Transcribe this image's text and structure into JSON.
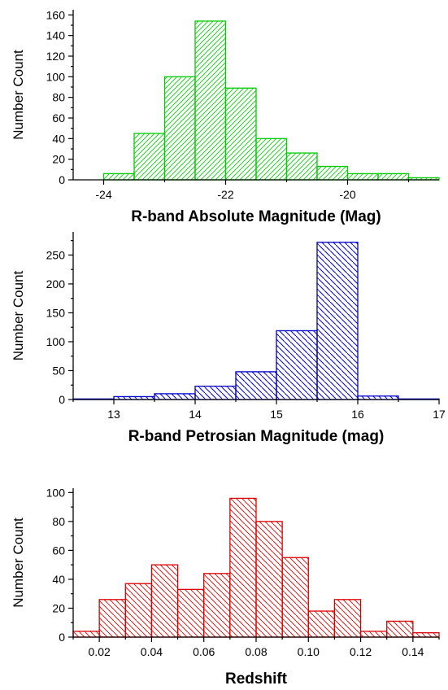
{
  "chart_data": [
    {
      "type": "bar",
      "name": "absolute-magnitude",
      "color": "#00cc00",
      "hatch": "forward",
      "xlabel": "R-band Absolute Magnitude (Mag)",
      "ylabel": "Number Count",
      "xlim": [
        -24.5,
        -18.5
      ],
      "ylim": [
        0,
        165
      ],
      "xticks": [
        -24,
        -22,
        -20
      ],
      "xtick_labels": [
        "-24",
        "-22",
        "-20"
      ],
      "yticks": [
        0,
        20,
        40,
        60,
        80,
        100,
        120,
        140,
        160
      ],
      "ytick_labels": [
        "0",
        "20",
        "40",
        "60",
        "80",
        "100",
        "120",
        "140",
        "160"
      ],
      "bin_edges": [
        -24.0,
        -23.5,
        -23.0,
        -22.5,
        -22.0,
        -21.5,
        -21.0,
        -20.5,
        -20.0,
        -19.5,
        -19.0,
        -18.5
      ],
      "values": [
        6,
        45,
        100,
        154,
        89,
        40,
        26,
        13,
        6,
        6,
        2
      ]
    },
    {
      "type": "bar",
      "name": "petrosian-magnitude",
      "color": "#0000cc",
      "hatch": "backward",
      "xlabel": "R-band Petrosian Magnitude (mag)",
      "ylabel": "Number Count",
      "xlim": [
        12.5,
        17.0
      ],
      "ylim": [
        0,
        290
      ],
      "xticks": [
        13,
        14,
        15,
        16,
        17
      ],
      "xtick_labels": [
        "13",
        "14",
        "15",
        "16",
        "17"
      ],
      "yticks": [
        0,
        50,
        100,
        150,
        200,
        250
      ],
      "ytick_labels": [
        "0",
        "50",
        "100",
        "150",
        "200",
        "250"
      ],
      "bin_edges": [
        12.5,
        13.0,
        13.5,
        14.0,
        14.5,
        15.0,
        15.5,
        16.0,
        16.5,
        17.0
      ],
      "values": [
        1,
        5,
        10,
        23,
        48,
        119,
        272,
        6,
        1
      ]
    },
    {
      "type": "bar",
      "name": "redshift",
      "color": "#dd0000",
      "hatch": "backward",
      "xlabel": "Redshift",
      "ylabel": "Number Count",
      "xlim": [
        0.01,
        0.15
      ],
      "ylim": [
        0,
        103
      ],
      "xticks": [
        0.02,
        0.04,
        0.06,
        0.08,
        0.1,
        0.12,
        0.14
      ],
      "xtick_labels": [
        "0.02",
        "0.04",
        "0.06",
        "0.08",
        "0.10",
        "0.12",
        "0.14"
      ],
      "yticks": [
        0,
        20,
        40,
        60,
        80,
        100
      ],
      "ytick_labels": [
        "0",
        "20",
        "40",
        "60",
        "80",
        "100"
      ],
      "bin_edges": [
        0.01,
        0.02,
        0.03,
        0.04,
        0.05,
        0.06,
        0.07,
        0.08,
        0.09,
        0.1,
        0.11,
        0.12,
        0.13,
        0.14,
        0.15
      ],
      "values": [
        4,
        26,
        37,
        50,
        33,
        44,
        96,
        80,
        55,
        18,
        26,
        4,
        11,
        3
      ]
    }
  ]
}
